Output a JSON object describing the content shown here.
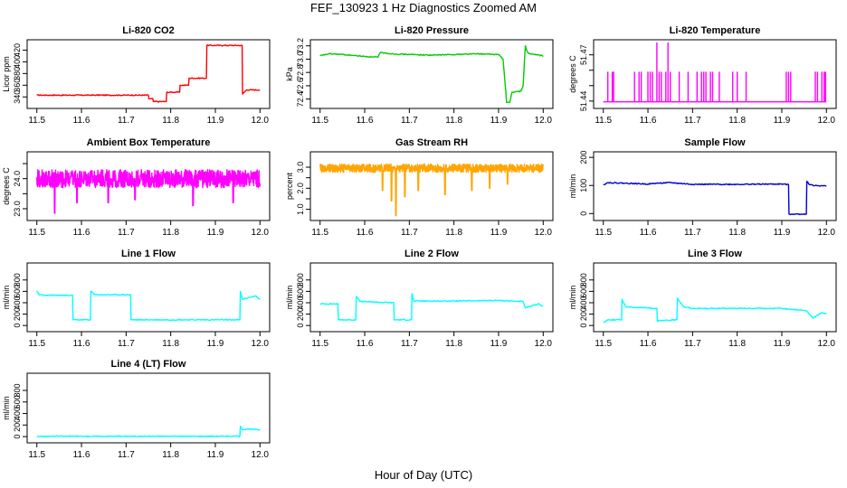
{
  "figure": {
    "title": "FEF_130923 1 Hz Diagnostics Zoomed AM",
    "xlabel": "Hour of Day (UTC)"
  },
  "chart_data": [
    {
      "type": "line",
      "title": "Li-820 CO2",
      "ylabel": "Licor ppm",
      "color": "#ff0000",
      "xlim": [
        11.5,
        12.0
      ],
      "ylim": [
        325,
        433
      ],
      "xticks": [
        11.5,
        11.6,
        11.7,
        11.8,
        11.9,
        12.0
      ],
      "xtick_labels": [
        "11.5",
        "11.6",
        "11.7",
        "11.8",
        "11.9",
        "12.0"
      ],
      "yticks": [
        340,
        360,
        380,
        400,
        420
      ],
      "ytick_labels": [
        "340",
        "360",
        "380",
        "400",
        "420"
      ],
      "x": [
        11.5,
        11.75,
        11.751,
        11.76,
        11.761,
        11.79,
        11.791,
        11.82,
        11.821,
        11.84,
        11.841,
        11.88,
        11.881,
        11.96,
        11.961,
        11.97,
        12.0
      ],
      "y": [
        343,
        343,
        337,
        337,
        332,
        332,
        348,
        348,
        360,
        360,
        372,
        372,
        428,
        428,
        345,
        352,
        352
      ]
    },
    {
      "type": "line",
      "title": "Li-820 Pressure",
      "ylabel": "kPa",
      "color": "#00cc00",
      "xlim": [
        11.5,
        12.0
      ],
      "ylim": [
        72.3,
        73.25
      ],
      "xticks": [
        11.5,
        11.6,
        11.7,
        11.8,
        11.9,
        12.0
      ],
      "xtick_labels": [
        "11.5",
        "11.6",
        "11.7",
        "11.8",
        "11.9",
        "12.0"
      ],
      "yticks": [
        72.4,
        72.6,
        72.8,
        73.0,
        73.2
      ],
      "ytick_labels": [
        "72.4",
        "72.6",
        "72.8",
        "73.0",
        "73.2"
      ],
      "x": [
        11.5,
        11.52,
        11.55,
        11.6,
        11.63,
        11.635,
        11.66,
        11.7,
        11.75,
        11.8,
        11.85,
        11.9,
        11.91,
        11.918,
        11.925,
        11.93,
        11.95,
        11.955,
        11.96,
        11.965,
        11.97,
        11.98,
        12.0
      ],
      "y": [
        73.05,
        73.08,
        73.07,
        73.04,
        73.03,
        73.1,
        73.08,
        73.07,
        73.06,
        73.07,
        73.08,
        73.07,
        73.0,
        72.35,
        72.35,
        72.5,
        72.52,
        72.6,
        73.2,
        73.1,
        73.08,
        73.07,
        73.05
      ]
    },
    {
      "type": "line",
      "title": "Li-820 Temperature",
      "ylabel": "degrees C",
      "color": "#ff00ff",
      "xlim": [
        11.5,
        12.0
      ],
      "ylim": [
        51.437,
        51.478
      ],
      "xticks": [
        11.5,
        11.6,
        11.7,
        11.8,
        11.9,
        12.0
      ],
      "xtick_labels": [
        "11.5",
        "11.6",
        "11.7",
        "11.8",
        "11.9",
        "12.0"
      ],
      "yticks": [
        51.44,
        51.45,
        51.46,
        51.47
      ],
      "ytick_labels": [
        "51.44",
        "",
        "",
        "51.47"
      ],
      "baseline": 51.4395,
      "spikes": [
        {
          "x": 11.51,
          "y": 51.459
        },
        {
          "x": 11.52,
          "y": 51.459
        },
        {
          "x": 11.523,
          "y": 51.459
        },
        {
          "x": 11.57,
          "y": 51.459
        },
        {
          "x": 11.58,
          "y": 51.459
        },
        {
          "x": 11.585,
          "y": 51.459
        },
        {
          "x": 11.6,
          "y": 51.459
        },
        {
          "x": 11.605,
          "y": 51.459
        },
        {
          "x": 11.61,
          "y": 51.459
        },
        {
          "x": 11.62,
          "y": 51.478
        },
        {
          "x": 11.625,
          "y": 51.459
        },
        {
          "x": 11.63,
          "y": 51.459
        },
        {
          "x": 11.64,
          "y": 51.459
        },
        {
          "x": 11.645,
          "y": 51.478
        },
        {
          "x": 11.65,
          "y": 51.459
        },
        {
          "x": 11.67,
          "y": 51.459
        },
        {
          "x": 11.69,
          "y": 51.459
        },
        {
          "x": 11.71,
          "y": 51.459
        },
        {
          "x": 11.72,
          "y": 51.459
        },
        {
          "x": 11.725,
          "y": 51.459
        },
        {
          "x": 11.73,
          "y": 51.459
        },
        {
          "x": 11.74,
          "y": 51.459
        },
        {
          "x": 11.745,
          "y": 51.459
        },
        {
          "x": 11.76,
          "y": 51.459
        },
        {
          "x": 11.79,
          "y": 51.459
        },
        {
          "x": 11.8,
          "y": 51.459
        },
        {
          "x": 11.82,
          "y": 51.459
        },
        {
          "x": 11.91,
          "y": 51.459
        },
        {
          "x": 11.915,
          "y": 51.459
        },
        {
          "x": 11.92,
          "y": 51.459
        },
        {
          "x": 11.975,
          "y": 51.459
        },
        {
          "x": 11.98,
          "y": 51.459
        },
        {
          "x": 11.99,
          "y": 51.459
        },
        {
          "x": 11.995,
          "y": 51.459
        },
        {
          "x": 11.998,
          "y": 51.459
        }
      ]
    },
    {
      "type": "line",
      "title": "Ambient Box Temperature",
      "ylabel": "degrees C",
      "color": "#ff00ff",
      "xlim": [
        11.5,
        12.0
      ],
      "ylim": [
        22.7,
        24.8
      ],
      "xticks": [
        11.5,
        11.6,
        11.7,
        11.8,
        11.9,
        12.0
      ],
      "xtick_labels": [
        "11.5",
        "11.6",
        "11.7",
        "11.8",
        "11.9",
        "12.0"
      ],
      "yticks": [
        23.0,
        23.5,
        24.0,
        24.5
      ],
      "ytick_labels": [
        "23.0",
        "",
        "24.0",
        ""
      ],
      "noise_band": {
        "center": 24.0,
        "amplitude": 0.3,
        "dips": [
          {
            "x": 11.54,
            "y": 22.85
          },
          {
            "x": 11.59,
            "y": 23.2
          },
          {
            "x": 11.66,
            "y": 23.2
          },
          {
            "x": 11.72,
            "y": 23.3
          },
          {
            "x": 11.85,
            "y": 23.1
          },
          {
            "x": 11.94,
            "y": 23.2
          }
        ]
      }
    },
    {
      "type": "line",
      "title": "Gas Stream RH",
      "ylabel": "percent",
      "color": "#ffa500",
      "xlim": [
        11.5,
        12.0
      ],
      "ylim": [
        0.6,
        3.6
      ],
      "xticks": [
        11.5,
        11.6,
        11.7,
        11.8,
        11.9,
        12.0
      ],
      "xtick_labels": [
        "11.5",
        "11.6",
        "11.7",
        "11.8",
        "11.9",
        "12.0"
      ],
      "yticks": [
        1.0,
        1.5,
        2.0,
        2.5,
        3.0
      ],
      "ytick_labels": [
        "1.0",
        "",
        "2.0",
        "",
        "3.0"
      ],
      "noise_band": {
        "center": 2.95,
        "amplitude": 0.2,
        "dips": [
          {
            "x": 11.66,
            "y": 1.4
          },
          {
            "x": 11.67,
            "y": 0.7
          },
          {
            "x": 11.69,
            "y": 1.6
          },
          {
            "x": 11.64,
            "y": 1.9
          },
          {
            "x": 11.72,
            "y": 1.9
          },
          {
            "x": 11.78,
            "y": 1.7
          },
          {
            "x": 11.84,
            "y": 1.9
          },
          {
            "x": 11.88,
            "y": 2.0
          },
          {
            "x": 11.92,
            "y": 2.2
          }
        ]
      }
    },
    {
      "type": "line",
      "title": "Sample Flow",
      "ylabel": "ml/min",
      "color": "#0000cd",
      "xlim": [
        11.5,
        12.0
      ],
      "ylim": [
        -15,
        210
      ],
      "xticks": [
        11.5,
        11.6,
        11.7,
        11.8,
        11.9,
        12.0
      ],
      "xtick_labels": [
        "11.5",
        "11.6",
        "11.7",
        "11.8",
        "11.9",
        "12.0"
      ],
      "yticks": [
        0,
        100,
        200
      ],
      "ytick_labels": [
        "0",
        "100",
        "200"
      ],
      "x": [
        11.5,
        11.51,
        11.55,
        11.6,
        11.62,
        11.65,
        11.7,
        11.8,
        11.9,
        11.915,
        11.916,
        11.955,
        11.956,
        11.96,
        11.97,
        12.0
      ],
      "y": [
        103,
        110,
        108,
        105,
        108,
        110,
        104,
        104,
        105,
        103,
        -2,
        -2,
        115,
        106,
        100,
        98
      ]
    },
    {
      "type": "line",
      "title": "Line 1 Flow",
      "ylabel": "ml/min",
      "color": "#00ffff",
      "xlim": [
        11.5,
        12.0
      ],
      "ylim": [
        -60,
        1050
      ],
      "xticks": [
        11.5,
        11.6,
        11.7,
        11.8,
        11.9,
        12.0
      ],
      "xtick_labels": [
        "11.5",
        "11.6",
        "11.7",
        "11.8",
        "11.9",
        "12.0"
      ],
      "yticks": [
        0,
        200,
        400,
        600,
        800
      ],
      "ytick_labels": [
        "0",
        "200",
        "400",
        "600",
        "800"
      ],
      "x": [
        11.5,
        11.505,
        11.52,
        11.58,
        11.581,
        11.62,
        11.621,
        11.63,
        11.7,
        11.71,
        11.711,
        11.955,
        11.956,
        11.96,
        11.99,
        12.0
      ],
      "y": [
        610,
        540,
        530,
        530,
        100,
        100,
        600,
        540,
        540,
        540,
        100,
        100,
        600,
        460,
        520,
        460
      ]
    },
    {
      "type": "line",
      "title": "Line 2 Flow",
      "ylabel": "ml/min",
      "color": "#00ffff",
      "xlim": [
        11.5,
        12.0
      ],
      "ylim": [
        -60,
        1050
      ],
      "xticks": [
        11.5,
        11.6,
        11.7,
        11.8,
        11.9,
        12.0
      ],
      "xtick_labels": [
        "11.5",
        "11.6",
        "11.7",
        "11.8",
        "11.9",
        "12.0"
      ],
      "yticks": [
        0,
        200,
        400,
        600,
        800
      ],
      "ytick_labels": [
        "0",
        "200",
        "400",
        "600",
        "800"
      ],
      "x": [
        11.5,
        11.54,
        11.541,
        11.58,
        11.581,
        11.59,
        11.665,
        11.666,
        11.705,
        11.706,
        11.71,
        11.8,
        11.9,
        11.955,
        11.96,
        11.99,
        12.0
      ],
      "y": [
        380,
        380,
        100,
        100,
        510,
        420,
        400,
        100,
        100,
        560,
        430,
        430,
        440,
        420,
        310,
        380,
        340
      ]
    },
    {
      "type": "line",
      "title": "Line 3 Flow",
      "ylabel": "ml/min",
      "color": "#00ffff",
      "xlim": [
        11.5,
        12.0
      ],
      "ylim": [
        -60,
        1050
      ],
      "xticks": [
        11.5,
        11.6,
        11.7,
        11.8,
        11.9,
        12.0
      ],
      "xtick_labels": [
        "11.5",
        "11.6",
        "11.7",
        "11.8",
        "11.9",
        "12.0"
      ],
      "yticks": [
        0,
        200,
        400,
        600,
        800
      ],
      "ytick_labels": [
        "0",
        "200",
        "400",
        "600",
        "800"
      ],
      "x": [
        11.5,
        11.51,
        11.541,
        11.542,
        11.55,
        11.62,
        11.621,
        11.665,
        11.666,
        11.68,
        11.7,
        11.8,
        11.9,
        11.955,
        11.97,
        11.99,
        12.0
      ],
      "y": [
        50,
        100,
        100,
        460,
        330,
        300,
        80,
        100,
        480,
        330,
        300,
        300,
        300,
        260,
        130,
        230,
        200
      ]
    },
    {
      "type": "line",
      "title": "Line 4 (LT) Flow",
      "ylabel": "ml/min",
      "color": "#00ffff",
      "xlim": [
        11.5,
        12.0
      ],
      "ylim": [
        -60,
        1050
      ],
      "xticks": [
        11.5,
        11.6,
        11.7,
        11.8,
        11.9,
        12.0
      ],
      "xtick_labels": [
        "11.5",
        "11.6",
        "11.7",
        "11.8",
        "11.9",
        "12.0"
      ],
      "yticks": [
        0,
        200,
        400,
        600,
        800
      ],
      "ytick_labels": [
        "0",
        "200",
        "400",
        "600",
        "800"
      ],
      "x": [
        11.5,
        11.955,
        11.956,
        11.96,
        11.97,
        12.0
      ],
      "y": [
        5,
        5,
        180,
        120,
        130,
        120
      ]
    }
  ]
}
